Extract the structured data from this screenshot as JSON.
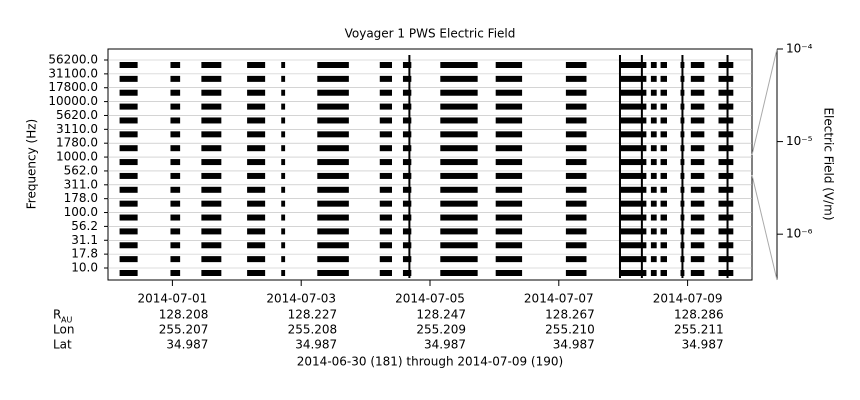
{
  "chart_data": {
    "type": "channel-coverage",
    "title": "Voyager 1 PWS Electric Field",
    "ylabel": "Frequency (Hz)",
    "y2label": "Electric Field (V/m)",
    "categories": [
      "10.0",
      "17.8",
      "31.1",
      "56.2",
      "100.0",
      "178.0",
      "311.0",
      "562.0",
      "1000.0",
      "1780.0",
      "3110.0",
      "5620.0",
      "10000.0",
      "17800.0",
      "31100.0",
      "56200.0"
    ],
    "xlim": [
      0,
      10
    ],
    "xticks": [
      {
        "value": 1,
        "label": "2014-07-01"
      },
      {
        "value": 3,
        "label": "2014-07-03"
      },
      {
        "value": 5,
        "label": "2014-07-05"
      },
      {
        "value": 7,
        "label": "2014-07-07"
      },
      {
        "value": 9,
        "label": "2014-07-09"
      }
    ],
    "segments": [
      [
        0.18,
        0.46
      ],
      [
        0.97,
        1.12
      ],
      [
        1.45,
        1.76
      ],
      [
        2.16,
        2.44
      ],
      [
        2.69,
        2.75
      ],
      [
        3.25,
        3.74
      ],
      [
        4.22,
        4.41
      ],
      [
        4.58,
        4.71
      ],
      [
        5.16,
        5.74
      ],
      [
        6.02,
        6.43
      ],
      [
        7.11,
        7.43
      ],
      [
        7.95,
        8.36
      ],
      [
        8.43,
        8.52
      ],
      [
        8.58,
        8.68
      ],
      [
        8.89,
        8.95
      ],
      [
        9.05,
        9.26
      ],
      [
        9.48,
        9.71
      ]
    ],
    "spikes": [
      4.68,
      7.95,
      8.29,
      8.92,
      9.62
    ],
    "color": "#000000",
    "y2scale": "log",
    "y2lim": [
      3.2e-07,
      0.0001
    ],
    "y2ticks": [
      {
        "value": 0.0001,
        "label": "10⁻⁴"
      },
      {
        "value": 1e-05,
        "label": "10⁻⁵"
      },
      {
        "value": 1e-06,
        "label": "10⁻⁶"
      }
    ],
    "ephemeris": [
      {
        "label": "R",
        "sub": "AU",
        "values": [
          "128.208",
          "128.227",
          "128.247",
          "128.267",
          "128.286"
        ]
      },
      {
        "label": "Lon",
        "values": [
          "255.207",
          "255.208",
          "255.209",
          "255.210",
          "255.211"
        ]
      },
      {
        "label": "Lat",
        "values": [
          "34.987",
          "34.987",
          "34.987",
          "34.987",
          "34.987"
        ]
      }
    ],
    "footer": "2014-06-30 (181) through 2014-07-09 (190)"
  }
}
